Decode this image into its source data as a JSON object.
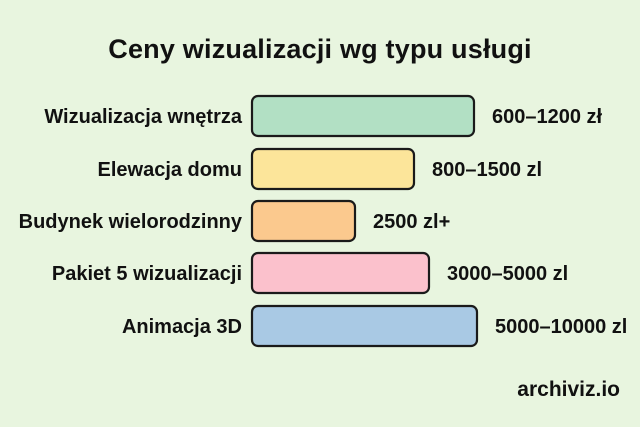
{
  "footer": "archiviz.io",
  "colors": {
    "background": "#e8f5df",
    "bar_stroke": "#1a1a1a"
  },
  "chart_data": {
    "type": "bar",
    "orientation": "horizontal",
    "title": "Ceny wizualizacji wg typu usługi",
    "categories": [
      "Wizualizacja wnętrza",
      "Elewacja domu",
      "Budynek wielorodzinny",
      "Pakiet 5 wizualizacji",
      "Animacja 3D"
    ],
    "value_labels": [
      "600–1200 zł",
      "800–1500 zl",
      "2500 zl+",
      "3000–5000 zl",
      "5000–10000 zl"
    ],
    "values": [
      1200,
      1500,
      2500,
      5000,
      10000
    ],
    "bar_colors": [
      "#b2e0c4",
      "#fce59a",
      "#fbc98e",
      "#fbc1cc",
      "#a9c9e4"
    ],
    "axes_visible": false,
    "grid": false
  }
}
